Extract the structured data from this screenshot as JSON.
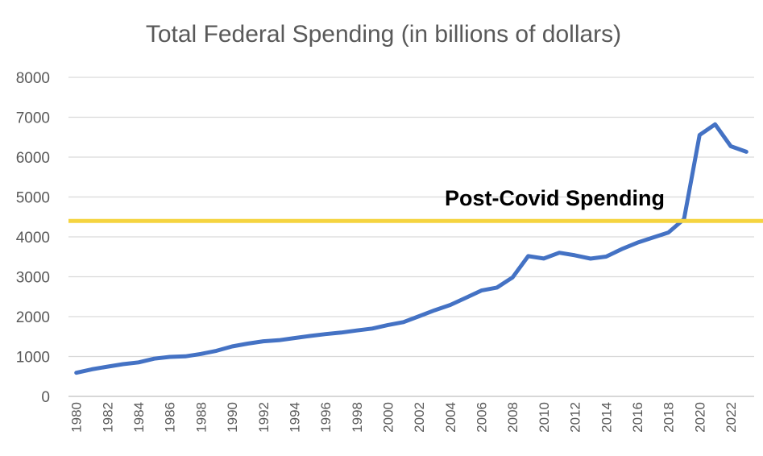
{
  "chart_data": {
    "type": "line",
    "title": "Total Federal Spending (in billions of dollars)",
    "xlabel": "",
    "ylabel": "",
    "ylim": [
      0,
      8000
    ],
    "yticks": [
      "0",
      "1000",
      "2000",
      "3000",
      "4000",
      "5000",
      "6000",
      "7000",
      "8000"
    ],
    "xticks": [
      "1980",
      "1982",
      "1984",
      "1986",
      "1988",
      "1990",
      "1992",
      "1994",
      "1996",
      "1998",
      "2000",
      "2002",
      "2004",
      "2006",
      "2008",
      "2010",
      "2012",
      "2014",
      "2016",
      "2018",
      "2020",
      "2022"
    ],
    "grid": true,
    "legend": "none",
    "series": [
      {
        "color": "#4472c4",
        "x": [
          1980,
          1981,
          1982,
          1983,
          1984,
          1985,
          1986,
          1987,
          1988,
          1989,
          1990,
          1991,
          1992,
          1993,
          1994,
          1995,
          1996,
          1997,
          1998,
          1999,
          2000,
          2001,
          2002,
          2003,
          2004,
          2005,
          2006,
          2007,
          2008,
          2009,
          2010,
          2011,
          2012,
          2013,
          2014,
          2015,
          2016,
          2017,
          2018,
          2019,
          2020,
          2021,
          2022,
          2023
        ],
        "values": [
          591,
          678,
          746,
          808,
          852,
          946,
          990,
          1004,
          1065,
          1144,
          1253,
          1324,
          1382,
          1409,
          1462,
          1516,
          1561,
          1601,
          1652,
          1702,
          1789,
          1863,
          2011,
          2160,
          2293,
          2472,
          2655,
          2729,
          2983,
          3518,
          3457,
          3603,
          3537,
          3455,
          3506,
          3692,
          3853,
          3982,
          4109,
          4447,
          6554,
          6822,
          6273,
          6134
        ]
      }
    ],
    "reference_lines": [
      {
        "label": "Post-Covid Spending",
        "y": 4400,
        "color": "#f5d440"
      }
    ]
  }
}
